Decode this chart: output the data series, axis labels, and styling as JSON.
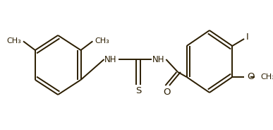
{
  "bg_color": "#ffffff",
  "line_color": "#2b1d00",
  "line_width": 1.4,
  "text_color": "#2b1d00",
  "font_size": 8.5,
  "figsize": [
    3.87,
    1.84
  ],
  "dpi": 100,
  "xlim": [
    0,
    387
  ],
  "ylim": [
    0,
    184
  ]
}
